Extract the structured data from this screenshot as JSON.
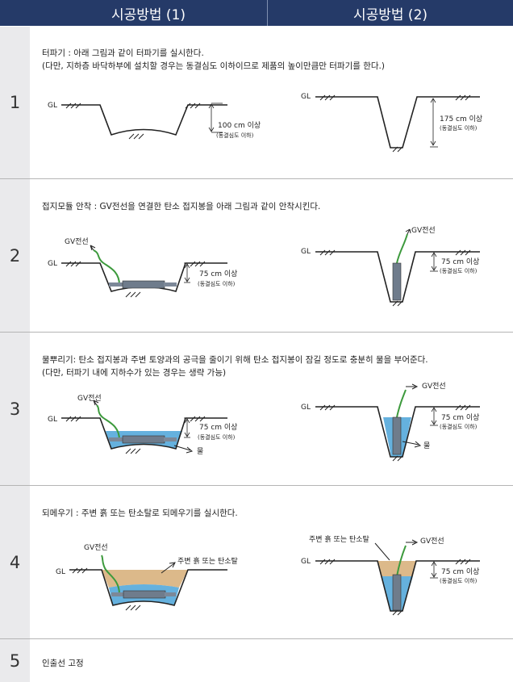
{
  "header": {
    "method1": "시공방법 (1)",
    "method2": "시공방법 (2)"
  },
  "steps": [
    {
      "number": "1",
      "lines": [
        "터파기 : 아래 그림과 같이 터파기를 실시한다.",
        "(다만, 지하층 바닥하부에 설치할 경우는 동결심도 이하이므로 제품의 높이만큼만 터파기를 한다.)"
      ],
      "left": {
        "gl": "GL",
        "depth": "100 cm 이상",
        "note": "(동결심도 이하)"
      },
      "right": {
        "gl": "GL",
        "depth": "175 cm 이상",
        "note": "(동결심도 이하)"
      }
    },
    {
      "number": "2",
      "lines": [
        "접지모듈 안착 : GV전선을 연결한  탄소 접지봉을  아래 그림과 같이 안착시킨다."
      ],
      "left": {
        "wire": "GV전선",
        "gl": "GL",
        "depth": "75 cm 이상",
        "note": "(동결심도 이하)"
      },
      "right": {
        "wire": "GV전선",
        "gl": "GL",
        "depth": "75 cm 이상",
        "note": "(동결심도 이하)"
      }
    },
    {
      "number": "3",
      "lines": [
        "물뿌리기: 탄소 접지봉과 주변 토양과의 공극을 줄이기 위해  탄소 접지봉이  잠길 정도로 충분히 물을 부어준다.",
        "(다만, 터파기 내에 지하수가 있는 경우는 생략 가능)"
      ],
      "left": {
        "wire": "GV전선",
        "gl": "GL",
        "depth": "75 cm 이상",
        "note": "(동결심도 이하)",
        "water": "물"
      },
      "right": {
        "wire": "GV전선",
        "gl": "GL",
        "depth": "75 cm 이상",
        "note": "(동결심도 이하)",
        "water": "물"
      }
    },
    {
      "number": "4",
      "lines": [
        "되메우기 : 주변 흙 또는 탄소탈로 되메우기를 실시한다."
      ],
      "left": {
        "wire": "GV전선",
        "gl": "GL",
        "soil": "주변 흙 또는 탄소탈"
      },
      "right": {
        "wire": "GV전선",
        "gl": "GL",
        "soil": "주변 흙 또는 탄소탈",
        "depth": "75 cm 이상",
        "note": "(동결심도 이하)"
      }
    },
    {
      "number": "5",
      "lines": [
        "인출선 고정"
      ]
    }
  ],
  "colors": {
    "header": "#253a68",
    "numcol": "#eaeaec",
    "wire": "#3d9a3d",
    "water": "#4aa3d8",
    "soil": "#dcb98a",
    "rod": "#6f7c8c"
  }
}
